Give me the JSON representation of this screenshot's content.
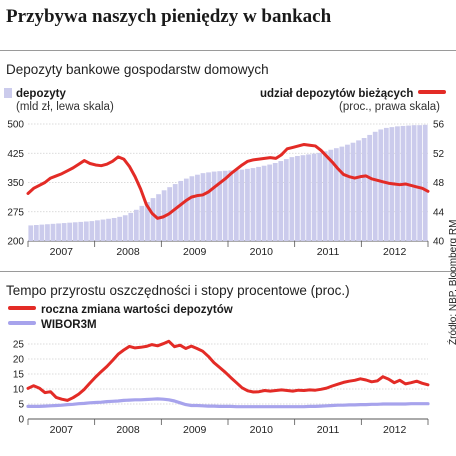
{
  "title": "Przybywa naszych pieniędzy w bankach",
  "source": "Źródło: NBP, Bloomberg RM",
  "colors": {
    "deposits_bar": "#cbcbec",
    "red_line": "#e32b26",
    "wibor_line": "#a7a3ec",
    "text": "#1a1a1a"
  },
  "chart_data": [
    {
      "type": "bar+line",
      "title": "Depozyty bankowe gospodarstw domowych",
      "x_tick_labels": [
        "2007",
        "2008",
        "2009",
        "2010",
        "2011",
        "2012"
      ],
      "grid": true,
      "left_axis": {
        "ticks": [
          200,
          275,
          350,
          425,
          500
        ],
        "ylim": [
          200,
          500
        ]
      },
      "right_axis": {
        "ticks": [
          40,
          44,
          48,
          52,
          56
        ],
        "ylim": [
          40,
          56
        ]
      },
      "series": [
        {
          "name": "depozyty",
          "unit": "(mld zł, lewa skala)",
          "type": "bar",
          "axis": "left",
          "values": [
            240,
            241,
            242,
            243,
            244,
            245,
            246,
            247,
            248,
            249,
            250,
            251,
            253,
            255,
            257,
            259,
            262,
            266,
            272,
            280,
            290,
            300,
            310,
            320,
            330,
            338,
            346,
            354,
            360,
            366,
            370,
            374,
            376,
            378,
            379,
            380,
            381,
            382,
            383,
            385,
            387,
            390,
            393,
            396,
            400,
            405,
            410,
            415,
            418,
            420,
            422,
            424,
            426,
            430,
            434,
            438,
            442,
            447,
            452,
            458,
            464,
            472,
            480,
            486,
            490,
            492,
            494,
            495,
            496,
            497,
            497,
            498
          ]
        },
        {
          "name": "udział depozytów bieżących",
          "unit": "(proc., prawa skala)",
          "type": "line",
          "axis": "right",
          "values": [
            46.5,
            47.2,
            47.6,
            48.0,
            48.6,
            48.9,
            49.2,
            49.6,
            50.0,
            50.5,
            51.0,
            50.6,
            50.4,
            50.3,
            50.5,
            50.9,
            51.5,
            51.2,
            50.2,
            48.8,
            47.1,
            45.0,
            43.8,
            43.1,
            43.3,
            43.7,
            44.3,
            44.9,
            45.5,
            46.0,
            46.2,
            46.3,
            46.7,
            47.3,
            47.9,
            48.5,
            49.2,
            49.8,
            50.4,
            50.9,
            51.1,
            51.2,
            51.3,
            51.4,
            51.3,
            51.8,
            52.6,
            52.8,
            53.0,
            53.2,
            53.1,
            53.0,
            52.4,
            51.6,
            50.8,
            49.9,
            49.1,
            48.8,
            48.6,
            48.8,
            48.9,
            48.5,
            48.3,
            48.1,
            47.9,
            47.8,
            47.7,
            47.8,
            47.6,
            47.4,
            47.2,
            46.8
          ]
        }
      ]
    },
    {
      "type": "line",
      "title": "Tempo przyrostu oszczędności i stopy procentowe (proc.)",
      "x_tick_labels": [
        "2007",
        "2008",
        "2009",
        "2010",
        "2011",
        "2012"
      ],
      "grid": true,
      "y_axis": {
        "ticks": [
          0,
          5,
          10,
          15,
          20,
          25
        ],
        "ylim": [
          0,
          26
        ]
      },
      "series": [
        {
          "name": "roczna zmiana wartości depozytów",
          "values": [
            10.2,
            11.1,
            10.3,
            8.8,
            9.1,
            7.2,
            6.6,
            6.2,
            7.1,
            8.3,
            9.9,
            12.0,
            14.0,
            15.8,
            17.5,
            19.5,
            21.6,
            23.0,
            24.2,
            23.7,
            23.9,
            24.2,
            24.8,
            24.4,
            25.1,
            25.9,
            24.1,
            24.6,
            23.5,
            24.3,
            23.5,
            22.6,
            20.9,
            18.8,
            17.2,
            15.6,
            13.8,
            12.1,
            10.4,
            9.4,
            9.0,
            9.1,
            9.5,
            9.3,
            9.5,
            9.7,
            9.5,
            9.3,
            9.6,
            9.5,
            9.7,
            9.6,
            9.9,
            10.3,
            11.0,
            11.6,
            12.2,
            12.6,
            12.9,
            13.4,
            13.0,
            12.4,
            12.7,
            14.1,
            13.3,
            12.1,
            12.9,
            11.7,
            12.1,
            12.6,
            11.9,
            11.4
          ]
        },
        {
          "name": "WIBOR3M",
          "values": [
            4.2,
            4.2,
            4.2,
            4.3,
            4.4,
            4.5,
            4.6,
            4.8,
            4.9,
            5.1,
            5.2,
            5.4,
            5.5,
            5.6,
            5.8,
            5.9,
            6.0,
            6.2,
            6.3,
            6.4,
            6.4,
            6.5,
            6.6,
            6.7,
            6.6,
            6.4,
            6.0,
            5.4,
            4.8,
            4.5,
            4.5,
            4.4,
            4.3,
            4.3,
            4.2,
            4.2,
            4.2,
            4.1,
            4.1,
            4.1,
            4.1,
            4.1,
            4.1,
            4.1,
            4.1,
            4.1,
            4.1,
            4.1,
            4.1,
            4.1,
            4.2,
            4.2,
            4.3,
            4.4,
            4.5,
            4.6,
            4.6,
            4.7,
            4.7,
            4.8,
            4.8,
            4.9,
            4.9,
            5.0,
            5.0,
            5.0,
            5.0,
            5.0,
            5.1,
            5.1,
            5.1,
            5.1
          ]
        }
      ]
    }
  ]
}
